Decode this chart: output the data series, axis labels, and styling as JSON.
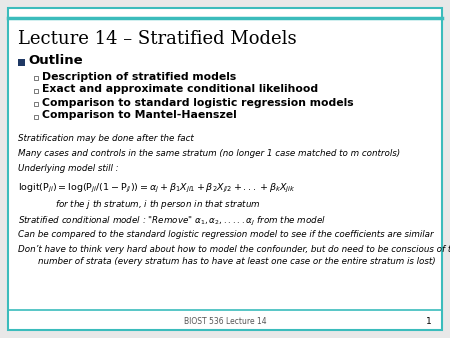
{
  "title": "Lecture 14 – Stratified Models",
  "title_fontsize": 13,
  "title_color": "#000000",
  "background_color": "#e8e8e8",
  "slide_bg": "#ffffff",
  "border_color": "#3bbcbc",
  "outline_label": "Outline",
  "outline_bullet_color": "#1f3864",
  "sub_bullets": [
    "Description of stratified models",
    "Exact and approximate conditional likelihood",
    "Comparison to standard logistic regression models",
    "Comparison to Mantel-Haenszel"
  ],
  "footer_text": "BIOST 536 Lecture 14",
  "page_number": "1"
}
